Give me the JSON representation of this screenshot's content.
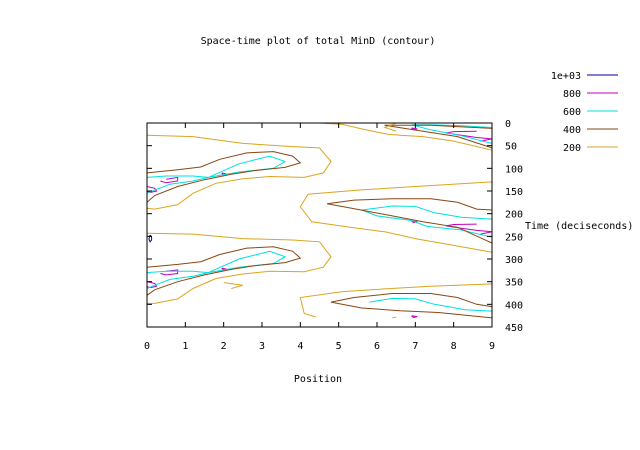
{
  "chart_data": {
    "type": "contour",
    "title": "Space-time plot of total MinD (contour)",
    "xlabel": "Position",
    "ylabel": "Time (deciseconds)",
    "xlim": [
      0,
      9
    ],
    "ylim": [
      0,
      450
    ],
    "y_inverted": true,
    "x_ticks": [
      "0",
      "1",
      "2",
      "3",
      "4",
      "5",
      "6",
      "7",
      "8",
      "9"
    ],
    "y_ticks": [
      "0",
      "50",
      "100",
      "150",
      "200",
      "250",
      "300",
      "350",
      "400",
      "450"
    ],
    "legend_position": "top-right",
    "grid": false,
    "series": [
      {
        "name": "1e+03",
        "color": "#0000a0",
        "contours": [
          [
            [
              0.08,
              247
            ],
            [
              0.12,
              252
            ],
            [
              0.12,
              258
            ],
            [
              0.08,
              262
            ],
            [
              0.05,
              256
            ],
            [
              0.08,
              247
            ]
          ]
        ]
      },
      {
        "name": "800",
        "color": "#c000c0",
        "contours": [
          [
            [
              0.0,
              140
            ],
            [
              0.2,
              144
            ],
            [
              0.25,
              150
            ],
            [
              0.1,
              153
            ],
            [
              0.0,
              151
            ]
          ],
          [
            [
              0.0,
              350
            ],
            [
              0.2,
              354
            ],
            [
              0.25,
              360
            ],
            [
              0.1,
              363
            ],
            [
              0.0,
              361
            ]
          ],
          [
            [
              0.5,
              327
            ],
            [
              0.8,
              324
            ],
            [
              0.8,
              332
            ],
            [
              0.5,
              335
            ],
            [
              0.35,
              332
            ]
          ],
          [
            [
              0.5,
              124
            ],
            [
              0.8,
              120
            ],
            [
              0.8,
              128
            ],
            [
              0.5,
              132
            ],
            [
              0.35,
              128
            ]
          ],
          [
            [
              1.95,
              110
            ],
            [
              2.05,
              112
            ],
            [
              1.98,
              114
            ],
            [
              1.95,
              110
            ]
          ],
          [
            [
              1.95,
              320
            ],
            [
              2.05,
              322
            ],
            [
              1.98,
              324
            ],
            [
              1.95,
              320
            ]
          ],
          [
            [
              6.9,
              216
            ],
            [
              7.05,
              218
            ],
            [
              6.95,
              220
            ],
            [
              6.9,
              216
            ]
          ],
          [
            [
              6.9,
              11
            ],
            [
              7.05,
              13
            ],
            [
              6.95,
              15
            ],
            [
              6.9,
              11
            ]
          ],
          [
            [
              6.9,
              425
            ],
            [
              7.05,
              427
            ],
            [
              6.95,
              429
            ],
            [
              6.9,
              425
            ]
          ],
          [
            [
              8.6,
              223
            ],
            [
              8.0,
              224
            ],
            [
              7.8,
              227
            ],
            [
              8.2,
              232
            ],
            [
              8.6,
              237
            ],
            [
              9.0,
              240
            ]
          ],
          [
            [
              8.6,
              18
            ],
            [
              8.0,
              19
            ],
            [
              7.8,
              22
            ],
            [
              8.2,
              27
            ],
            [
              8.6,
              32
            ],
            [
              9.0,
              35
            ]
          ],
          [
            [
              8.7,
              245
            ],
            [
              9.0,
              240
            ]
          ],
          [
            [
              8.7,
              40
            ],
            [
              9.0,
              35
            ]
          ]
        ]
      },
      {
        "name": "600",
        "color": "#00e0e0",
        "contours": [
          [
            [
              0.0,
              120
            ],
            [
              0.5,
              117
            ],
            [
              1.2,
              117
            ],
            [
              1.6,
              120
            ],
            [
              1.2,
              128
            ],
            [
              0.6,
              135
            ],
            [
              0.2,
              148
            ],
            [
              0.0,
              155
            ]
          ],
          [
            [
              0.0,
              330
            ],
            [
              0.5,
              327
            ],
            [
              1.2,
              327
            ],
            [
              1.6,
              330
            ],
            [
              1.2,
              338
            ],
            [
              0.6,
              345
            ],
            [
              0.2,
              358
            ],
            [
              0.0,
              365
            ]
          ],
          [
            [
              1.6,
              120
            ],
            [
              2.4,
              90
            ],
            [
              3.2,
              73
            ],
            [
              3.6,
              85
            ],
            [
              3.3,
              100
            ],
            [
              2.4,
              108
            ],
            [
              1.6,
              120
            ]
          ],
          [
            [
              1.6,
              330
            ],
            [
              2.4,
              300
            ],
            [
              3.2,
              283
            ],
            [
              3.6,
              295
            ],
            [
              3.3,
              310
            ],
            [
              2.4,
              318
            ],
            [
              1.6,
              330
            ]
          ],
          [
            [
              5.6,
              192
            ],
            [
              6.4,
              183
            ],
            [
              7.0,
              184
            ],
            [
              7.5,
              198
            ],
            [
              8.2,
              208
            ],
            [
              9.0,
              212
            ]
          ],
          [
            [
              5.6,
              192
            ],
            [
              6.0,
              205
            ],
            [
              6.9,
              215
            ],
            [
              7.3,
              228
            ],
            [
              8.2,
              236
            ],
            [
              9.0,
              252
            ]
          ],
          [
            [
              5.8,
              395
            ],
            [
              6.4,
              387
            ],
            [
              7.0,
              388
            ],
            [
              7.5,
              400
            ],
            [
              8.3,
              412
            ],
            [
              9.0,
              415
            ]
          ],
          [
            [
              6.9,
              4
            ],
            [
              7.4,
              4
            ],
            [
              8.2,
              6
            ],
            [
              9.0,
              10
            ]
          ],
          [
            [
              6.9,
              4
            ],
            [
              7.4,
              15
            ],
            [
              8.2,
              28
            ],
            [
              9.0,
              45
            ]
          ]
        ]
      },
      {
        "name": "400",
        "color": "#8b4513",
        "contours": [
          [
            [
              0.0,
              110
            ],
            [
              0.8,
              103
            ],
            [
              1.4,
              97
            ],
            [
              1.9,
              80
            ],
            [
              2.6,
              66
            ],
            [
              3.3,
              63
            ],
            [
              3.8,
              73
            ],
            [
              4.0,
              88
            ],
            [
              3.6,
              98
            ],
            [
              2.8,
              105
            ],
            [
              2.2,
              113
            ],
            [
              1.5,
              125
            ],
            [
              0.8,
              140
            ],
            [
              0.2,
              160
            ],
            [
              0.0,
              175
            ]
          ],
          [
            [
              0.0,
              318
            ],
            [
              0.8,
              312
            ],
            [
              1.4,
              306
            ],
            [
              1.9,
              290
            ],
            [
              2.6,
              276
            ],
            [
              3.3,
              273
            ],
            [
              3.8,
              283
            ],
            [
              4.0,
              298
            ],
            [
              3.6,
              308
            ],
            [
              2.8,
              315
            ],
            [
              2.2,
              323
            ],
            [
              1.5,
              335
            ],
            [
              0.8,
              350
            ],
            [
              0.2,
              368
            ],
            [
              0.0,
              380
            ]
          ],
          [
            [
              4.7,
              178
            ],
            [
              5.4,
              170
            ],
            [
              6.4,
              167
            ],
            [
              7.4,
              167
            ],
            [
              8.1,
              175
            ],
            [
              8.6,
              190
            ],
            [
              9.0,
              192
            ]
          ],
          [
            [
              4.7,
              178
            ],
            [
              5.2,
              186
            ],
            [
              6.4,
              205
            ],
            [
              7.2,
              218
            ],
            [
              8.1,
              230
            ],
            [
              9.0,
              265
            ]
          ],
          [
            [
              4.8,
              395
            ],
            [
              5.4,
              385
            ],
            [
              6.4,
              376
            ],
            [
              7.4,
              376
            ],
            [
              8.1,
              385
            ],
            [
              8.6,
              400
            ],
            [
              9.0,
              405
            ]
          ],
          [
            [
              4.8,
              395
            ],
            [
              5.6,
              408
            ],
            [
              6.6,
              414
            ],
            [
              7.6,
              418
            ],
            [
              9.0,
              430
            ]
          ],
          [
            [
              6.2,
              5
            ],
            [
              7.4,
              5
            ],
            [
              8.1,
              8
            ],
            [
              9.0,
              12
            ]
          ],
          [
            [
              6.2,
              5
            ],
            [
              7.2,
              18
            ],
            [
              8.1,
              30
            ],
            [
              9.0,
              55
            ]
          ]
        ]
      },
      {
        "name": "200",
        "color": "#daa520",
        "contours": [
          [
            [
              0.0,
              27
            ],
            [
              1.2,
              30
            ],
            [
              2.5,
              45
            ],
            [
              3.8,
              52
            ],
            [
              4.5,
              55
            ],
            [
              4.8,
              85
            ],
            [
              4.6,
              110
            ],
            [
              4.1,
              120
            ],
            [
              3.2,
              118
            ],
            [
              2.5,
              123
            ],
            [
              1.8,
              133
            ],
            [
              1.2,
              155
            ],
            [
              0.8,
              180
            ],
            [
              0.2,
              190
            ],
            [
              0.0,
              188
            ]
          ],
          [
            [
              0.0,
              243
            ],
            [
              1.2,
              245
            ],
            [
              2.5,
              255
            ],
            [
              3.8,
              258
            ],
            [
              4.5,
              262
            ],
            [
              4.8,
              295
            ],
            [
              4.6,
              318
            ],
            [
              4.1,
              328
            ],
            [
              3.2,
              327
            ],
            [
              2.5,
              333
            ],
            [
              1.8,
              343
            ],
            [
              1.2,
              365
            ],
            [
              0.8,
              388
            ],
            [
              0.2,
              398
            ],
            [
              0.0,
              398
            ]
          ],
          [
            [
              2.0,
              352
            ],
            [
              2.5,
              358
            ],
            [
              2.2,
              365
            ]
          ],
          [
            [
              4.5,
              0
            ],
            [
              5.1,
              3
            ],
            [
              5.6,
              13
            ],
            [
              6.0,
              20
            ],
            [
              6.3,
              25
            ],
            [
              6.6,
              27
            ],
            [
              7.2,
              30
            ],
            [
              8.0,
              40
            ],
            [
              9.0,
              60
            ]
          ],
          [
            [
              6.5,
              0
            ],
            [
              6.2,
              10
            ],
            [
              6.5,
              18
            ]
          ],
          [
            [
              9.0,
              130
            ],
            [
              7.0,
              140
            ],
            [
              5.5,
              148
            ],
            [
              4.2,
              157
            ],
            [
              4.0,
              185
            ],
            [
              4.3,
              218
            ],
            [
              5.3,
              230
            ],
            [
              6.2,
              240
            ],
            [
              7.0,
              255
            ],
            [
              8.0,
              270
            ],
            [
              9.0,
              285
            ]
          ],
          [
            [
              9.0,
              355
            ],
            [
              7.4,
              360
            ],
            [
              6.2,
              366
            ],
            [
              5.1,
              372
            ],
            [
              4.0,
              385
            ],
            [
              4.1,
              420
            ],
            [
              4.4,
              428
            ]
          ],
          [
            [
              6.5,
              428
            ],
            [
              6.4,
              430
            ]
          ]
        ]
      }
    ]
  }
}
